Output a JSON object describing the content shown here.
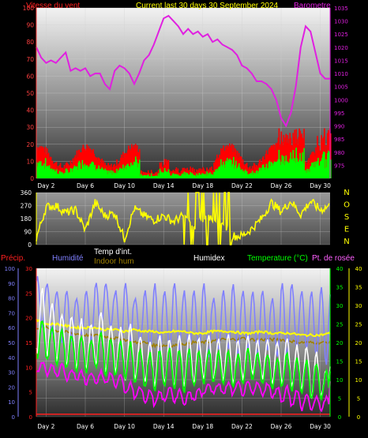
{
  "header": {
    "wind_label": "Vitesse du vent",
    "title": "Current last 30 days 30 September 2024",
    "baro_label": "Barometre"
  },
  "lower_header": {
    "precip": "Précip.",
    "humidity": "Humidité",
    "temp_int": "Temp d'int.",
    "indoor_hum": "Indoor hum",
    "humidex": "Humidex",
    "temperature": "Temperature (°C)",
    "dewpoint": "Pt. de rosée"
  },
  "colors": {
    "baro": "#e020e0",
    "gust": "#ff0000",
    "wind": "#00ff00",
    "direction": "#ffff00",
    "humidity": "#8080ff",
    "indoor_temp": "#ffff00",
    "indoor_hum": "#a08000",
    "humidex": "#ffffff",
    "temperature": "#00ff00",
    "dewpoint": "#ff00ff",
    "precip": "#ff2020"
  },
  "chart_data": [
    {
      "type": "line",
      "name": "wind_baro",
      "x_tick_labels": [
        "Day 2",
        "Day 6",
        "Day 10",
        "Day 14",
        "Day 18",
        "Day 22",
        "Day 26",
        "Day 30"
      ],
      "x_tick_days": [
        2,
        6,
        10,
        14,
        18,
        22,
        26,
        30
      ],
      "xlim": [
        1,
        31
      ],
      "wind_axis": {
        "ylim": [
          0,
          100
        ],
        "ticks": [
          0,
          10,
          20,
          30,
          40,
          50,
          60,
          70,
          80,
          90,
          100
        ]
      },
      "baro_axis": {
        "ylim": [
          970,
          1035
        ],
        "ticks": [
          975,
          980,
          985,
          990,
          995,
          1000,
          1005,
          1010,
          1015,
          1020,
          1025,
          1030,
          1035
        ]
      },
      "baro_series": {
        "x": [
          1,
          1.5,
          2,
          2.5,
          3,
          3.5,
          4,
          4.5,
          5,
          5.5,
          6,
          6.5,
          7,
          7.5,
          8,
          8.5,
          9,
          9.5,
          10,
          10.5,
          11,
          11.5,
          12,
          12.5,
          13,
          13.5,
          14,
          14.5,
          15,
          15.5,
          16,
          16.5,
          17,
          17.5,
          18,
          18.5,
          19,
          19.5,
          20,
          20.5,
          21,
          21.5,
          22,
          22.5,
          23,
          23.5,
          24,
          24.5,
          25,
          25.5,
          26,
          26.5,
          27,
          27.5,
          28,
          28.5,
          29,
          29.5,
          30,
          30.5,
          31
        ],
        "values": [
          1020,
          1016,
          1014,
          1015,
          1014,
          1016,
          1018,
          1011,
          1012,
          1011,
          1012,
          1009,
          1010,
          1010,
          1006,
          1004,
          1011,
          1013,
          1012,
          1010,
          1006,
          1010,
          1015,
          1017,
          1021,
          1026,
          1031,
          1032,
          1030,
          1028,
          1025,
          1027,
          1025,
          1026,
          1024,
          1025,
          1022,
          1023,
          1021,
          1020,
          1019,
          1017,
          1013,
          1012,
          1010,
          1007,
          1007,
          1006,
          1004,
          1000,
          993,
          990,
          995,
          1005,
          1020,
          1028,
          1026,
          1018,
          1010,
          1008,
          1008
        ]
      },
      "gust_series": {
        "typical_range": [
          5,
          22
        ],
        "max": 33
      },
      "wind_series": {
        "typical_range": [
          1,
          10
        ],
        "max": 18
      }
    },
    {
      "type": "line",
      "name": "wind_direction",
      "ylim": [
        0,
        360
      ],
      "ticks": [
        0,
        90,
        180,
        270,
        360
      ],
      "compass_labels": [
        "N",
        "O",
        "S",
        "E",
        "N"
      ],
      "values_by_day": [
        45,
        260,
        270,
        220,
        240,
        100,
        290,
        200,
        220,
        40,
        250,
        200,
        170,
        200,
        160,
        200,
        110,
        180,
        180,
        170,
        60,
        60,
        110,
        180,
        290,
        230,
        300,
        210,
        300,
        240,
        270
      ]
    },
    {
      "type": "line",
      "name": "temp_hum",
      "left_axis_humidity": {
        "ylim": [
          0,
          100
        ],
        "ticks": [
          0,
          10,
          20,
          30,
          40,
          50,
          60,
          70,
          80,
          90,
          100
        ]
      },
      "left_axis_precip": {
        "ylim": [
          0,
          30
        ],
        "ticks": [
          0,
          5,
          10,
          15,
          20,
          25,
          30
        ]
      },
      "right_axis_temp": {
        "ylim": [
          0,
          40
        ],
        "ticks": [
          0,
          5,
          10,
          15,
          20,
          25,
          30,
          35,
          40
        ]
      },
      "right_axis_temp2": {
        "ylim": [
          0,
          40
        ],
        "ticks": [
          0,
          5,
          10,
          15,
          20,
          25,
          30,
          35,
          40
        ]
      },
      "humidity": {
        "daily_max": [
          95,
          90,
          85,
          85,
          80,
          85,
          90,
          90,
          85,
          90,
          80,
          85,
          90,
          85,
          90,
          85,
          85,
          90,
          80,
          85,
          90,
          85,
          85,
          85,
          80,
          90,
          90,
          85,
          85,
          88,
          85
        ],
        "daily_min": [
          60,
          55,
          50,
          50,
          55,
          50,
          55,
          60,
          45,
          50,
          50,
          45,
          40,
          45,
          45,
          40,
          45,
          40,
          45,
          45,
          40,
          45,
          40,
          45,
          40,
          40,
          45,
          45,
          40,
          35,
          55
        ]
      },
      "indoor_temp": [
        26,
        25,
        25,
        24.5,
        24,
        24,
        24,
        23.5,
        23.5,
        23,
        23.5,
        23,
        23,
        22.5,
        23,
        23,
        22.5,
        22.5,
        23,
        23,
        23,
        22.5,
        22.5,
        23,
        22.5,
        22.5,
        22.5,
        22,
        22,
        22,
        22.5
      ],
      "indoor_hum": [
        60,
        60,
        58,
        57,
        56,
        55,
        55,
        54,
        53,
        52,
        50,
        50,
        48,
        48,
        48,
        49,
        50,
        50,
        51,
        52,
        52,
        53,
        52,
        52,
        52,
        52,
        51,
        50,
        50,
        50,
        50
      ],
      "humidex": {
        "daily_max": [
          35,
          31,
          28,
          27,
          26,
          25,
          28,
          25,
          24,
          25,
          22,
          20,
          22,
          21,
          22,
          22,
          21,
          22,
          21,
          22,
          21,
          22,
          20,
          21,
          20,
          21,
          19,
          19,
          17,
          13,
          23
        ],
        "daily_min": [
          17,
          16,
          15,
          14,
          13,
          13,
          14,
          12,
          12,
          10,
          10,
          9,
          8,
          9,
          8,
          8,
          9,
          10,
          10,
          10,
          9,
          10,
          11,
          10,
          9,
          9,
          8,
          7,
          5,
          6,
          12
        ]
      },
      "temperature": {
        "daily_max": [
          26,
          24,
          23,
          22,
          22,
          21,
          23,
          21,
          20,
          20,
          18,
          17,
          18,
          18,
          18,
          18,
          18,
          18,
          17,
          18,
          17,
          18,
          17,
          17,
          16,
          17,
          16,
          15,
          14,
          12,
          19
        ],
        "daily_min": [
          16,
          15,
          14,
          13,
          12,
          12,
          13,
          11,
          11,
          10,
          9,
          8,
          7,
          8,
          8,
          7,
          8,
          9,
          9,
          9,
          8,
          9,
          10,
          9,
          8,
          8,
          7,
          6,
          5,
          5,
          11
        ]
      },
      "dewpoint": {
        "daily_max": [
          15,
          14,
          14,
          13,
          12,
          12,
          12,
          12,
          11,
          9,
          8,
          7,
          7,
          8,
          7,
          7,
          8,
          9,
          9,
          9,
          9,
          9,
          9,
          9,
          8,
          8,
          7,
          6,
          5,
          5,
          11
        ],
        "daily_min": [
          12,
          11,
          11,
          10,
          10,
          9,
          9,
          9,
          8,
          6,
          5,
          4,
          3,
          4,
          4,
          3,
          4,
          6,
          6,
          6,
          6,
          6,
          6,
          6,
          5,
          4,
          3,
          2,
          2,
          2,
          9
        ]
      },
      "precip": {
        "total": 0.5
      }
    }
  ]
}
